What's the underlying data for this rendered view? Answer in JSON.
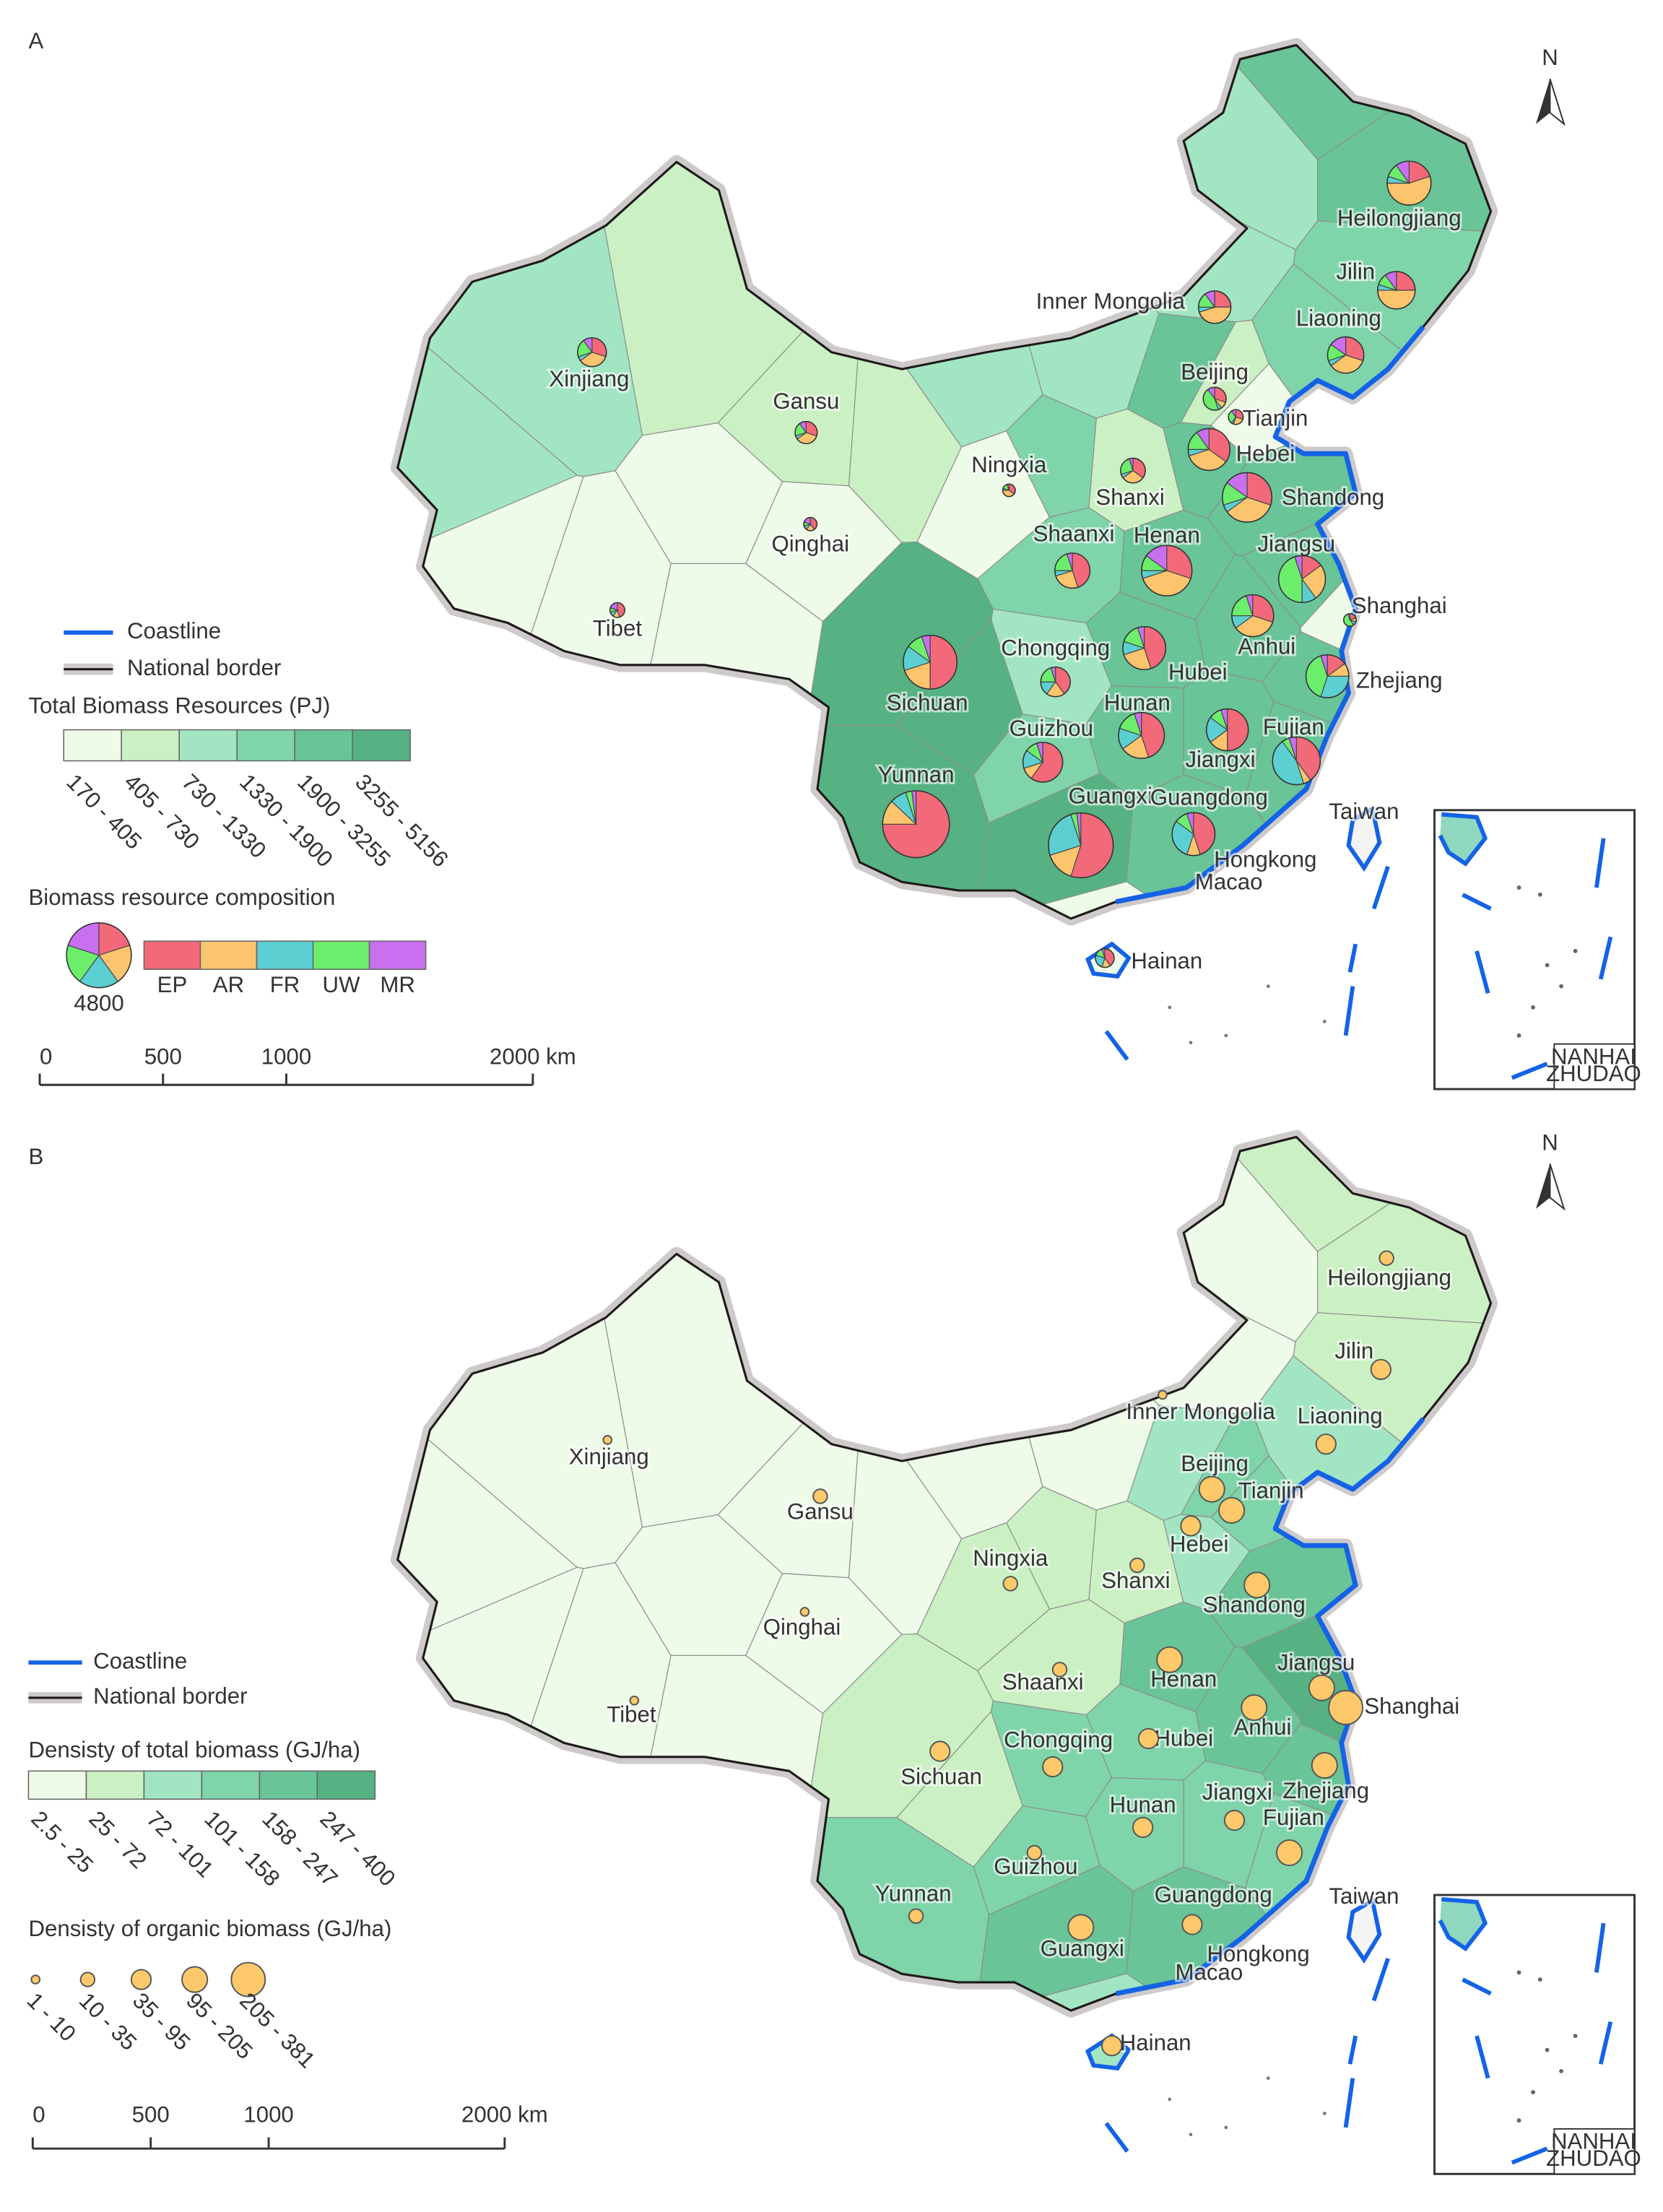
{
  "panels": [
    {
      "label": "A",
      "north": "N",
      "legend": {
        "coastline": "Coastline",
        "border": "National border",
        "title": "Total Biomass Resources (PJ)",
        "breaks": [
          170,
          405,
          730,
          1330,
          1900,
          3255,
          5156
        ],
        "bin_labels": [
          "170 - 405",
          "405 - 730",
          "730 - 1330",
          "1330 - 1900",
          "1900 - 3255",
          "3255 - 5156"
        ],
        "colors": [
          "#eefbe9",
          "#cbf0c4",
          "#a2e5c2",
          "#7fd4aa",
          "#69c497",
          "#56b283"
        ]
      },
      "composition_legend": {
        "title": "Biomass resource composition",
        "reference_value": 4800,
        "components": [
          "EP",
          "AR",
          "FR",
          "UW",
          "MR"
        ],
        "colors": [
          "#f2697a",
          "#fdc46e",
          "#5ccfd2",
          "#6cee6c",
          "#c870f0"
        ]
      },
      "scale": {
        "ticks": [
          0,
          500,
          1000,
          {
            "value": 2000,
            "label": "2000 km"
          }
        ]
      },
      "inset": [
        "NANHAI",
        "ZHUDAO"
      ],
      "provinces": [
        {
          "name": "Xinjiang",
          "total": 950,
          "composition": [
            30,
            35,
            5,
            20,
            10
          ]
        },
        {
          "name": "Tibet",
          "total": 250,
          "composition": [
            45,
            15,
            10,
            10,
            20
          ]
        },
        {
          "name": "Qinghai",
          "total": 200,
          "composition": [
            40,
            20,
            10,
            10,
            20
          ]
        },
        {
          "name": "Gansu",
          "total": 560,
          "composition": [
            30,
            35,
            5,
            20,
            10
          ]
        },
        {
          "name": "Ningxia",
          "total": 180,
          "composition": [
            35,
            40,
            5,
            15,
            5
          ]
        },
        {
          "name": "Inner Mongolia",
          "total": 1200,
          "composition": [
            25,
            45,
            5,
            15,
            10
          ]
        },
        {
          "name": "Heilongjiang",
          "total": 2200,
          "composition": [
            20,
            55,
            5,
            10,
            10
          ]
        },
        {
          "name": "Jilin",
          "total": 1600,
          "composition": [
            25,
            50,
            5,
            10,
            10
          ]
        },
        {
          "name": "Liaoning",
          "total": 1500,
          "composition": [
            30,
            35,
            5,
            15,
            15
          ]
        },
        {
          "name": "Beijing",
          "total": 600,
          "composition": [
            30,
            10,
            5,
            45,
            10
          ]
        },
        {
          "name": "Tianjin",
          "total": 250,
          "composition": [
            30,
            25,
            5,
            30,
            10
          ]
        },
        {
          "name": "Hebei",
          "total": 2000,
          "composition": [
            35,
            35,
            5,
            15,
            10
          ]
        },
        {
          "name": "Shanxi",
          "total": 700,
          "composition": [
            35,
            30,
            5,
            25,
            5
          ]
        },
        {
          "name": "Shandong",
          "total": 2800,
          "composition": [
            30,
            35,
            5,
            15,
            15
          ]
        },
        {
          "name": "Shaanxi",
          "total": 1400,
          "composition": [
            45,
            25,
            5,
            20,
            5
          ]
        },
        {
          "name": "Henan",
          "total": 2900,
          "composition": [
            30,
            40,
            5,
            10,
            15
          ]
        },
        {
          "name": "Jiangsu",
          "total": 2500,
          "composition": [
            15,
            25,
            10,
            45,
            5
          ]
        },
        {
          "name": "Shanghai",
          "total": 180,
          "composition": [
            20,
            10,
            10,
            55,
            5
          ]
        },
        {
          "name": "Anhui",
          "total": 2000,
          "composition": [
            30,
            35,
            10,
            20,
            5
          ]
        },
        {
          "name": "Hubei",
          "total": 2100,
          "composition": [
            45,
            25,
            10,
            15,
            5
          ]
        },
        {
          "name": "Chongqing",
          "total": 1000,
          "composition": [
            40,
            20,
            15,
            20,
            5
          ]
        },
        {
          "name": "Sichuan",
          "total": 3300,
          "composition": [
            50,
            20,
            15,
            10,
            5
          ]
        },
        {
          "name": "Zhejiang",
          "total": 2100,
          "composition": [
            15,
            10,
            30,
            40,
            5
          ]
        },
        {
          "name": "Hunan",
          "total": 2400,
          "composition": [
            45,
            20,
            15,
            15,
            5
          ]
        },
        {
          "name": "Guizhou",
          "total": 1800,
          "composition": [
            60,
            10,
            15,
            10,
            5
          ]
        },
        {
          "name": "Jiangxi",
          "total": 2000,
          "composition": [
            50,
            15,
            20,
            10,
            5
          ]
        },
        {
          "name": "Fujian",
          "total": 2600,
          "composition": [
            40,
            5,
            45,
            5,
            5
          ]
        },
        {
          "name": "Yunnan",
          "total": 5100,
          "composition": [
            75,
            12,
            8,
            3,
            2
          ]
        },
        {
          "name": "Guangxi",
          "total": 4800,
          "composition": [
            55,
            15,
            25,
            3,
            2
          ]
        },
        {
          "name": "Guangdong",
          "total": 2100,
          "composition": [
            45,
            10,
            30,
            10,
            5
          ]
        },
        {
          "name": "Hongkong"
        },
        {
          "name": "Macao"
        },
        {
          "name": "Taiwan"
        },
        {
          "name": "Hainan",
          "total": 400,
          "composition": [
            40,
            15,
            25,
            15,
            5
          ]
        }
      ]
    },
    {
      "label": "B",
      "north": "N",
      "legend": {
        "coastline": "Coastline",
        "border": "National border",
        "title": "Densisty of total biomass (GJ/ha)",
        "breaks": [
          2.5,
          25,
          72,
          101,
          158,
          247,
          400
        ],
        "bin_labels": [
          "2.5 - 25",
          "25 - 72",
          "72 - 101",
          "101 - 158",
          "158 - 247",
          "247 - 400"
        ],
        "colors": [
          "#eefbe9",
          "#cbf0c4",
          "#a2e5c2",
          "#7fd4aa",
          "#69c497",
          "#56b283"
        ]
      },
      "bubble_legend": {
        "title": "Densisty of organic biomass (GJ/ha)",
        "color": "#fdc96a",
        "breaks": [
          1,
          10,
          35,
          95,
          205,
          381
        ],
        "bin_labels": [
          "1 - 10",
          "10 - 35",
          "35 - 95",
          "95 - 205",
          "205 - 381"
        ]
      },
      "scale": {
        "ticks": [
          0,
          500,
          1000,
          {
            "value": 2000,
            "label": "2000 km"
          }
        ]
      },
      "inset": [
        "NANHAI",
        "ZHUDAO"
      ],
      "provinces": [
        {
          "name": "Xinjiang",
          "total_density": 10,
          "organic_density": 5
        },
        {
          "name": "Tibet",
          "total_density": 5,
          "organic_density": 5
        },
        {
          "name": "Qinghai",
          "total_density": 8,
          "organic_density": 5
        },
        {
          "name": "Gansu",
          "total_density": 20,
          "organic_density": 20
        },
        {
          "name": "Ningxia",
          "total_density": 40,
          "organic_density": 20
        },
        {
          "name": "Inner Mongolia",
          "total_density": 15,
          "organic_density": 5
        },
        {
          "name": "Heilongjiang",
          "total_density": 40,
          "organic_density": 20
        },
        {
          "name": "Jilin",
          "total_density": 45,
          "organic_density": 50
        },
        {
          "name": "Liaoning",
          "total_density": 80,
          "organic_density": 50
        },
        {
          "name": "Beijing",
          "total_density": 110,
          "organic_density": 120
        },
        {
          "name": "Tianjin",
          "total_density": 130,
          "organic_density": 150
        },
        {
          "name": "Hebei",
          "total_density": 90,
          "organic_density": 50
        },
        {
          "name": "Shanxi",
          "total_density": 40,
          "organic_density": 20
        },
        {
          "name": "Shandong",
          "total_density": 170,
          "organic_density": 150
        },
        {
          "name": "Shaanxi",
          "total_density": 50,
          "organic_density": 20
        },
        {
          "name": "Henan",
          "total_density": 200,
          "organic_density": 150
        },
        {
          "name": "Jiangsu",
          "total_density": 260,
          "organic_density": 150
        },
        {
          "name": "Shanghai",
          "total_density": 280,
          "organic_density": 300
        },
        {
          "name": "Anhui",
          "total_density": 170,
          "organic_density": 120
        },
        {
          "name": "Hubei",
          "total_density": 150,
          "organic_density": 40
        },
        {
          "name": "Chongqing",
          "total_density": 130,
          "organic_density": 50
        },
        {
          "name": "Sichuan",
          "total_density": 50,
          "organic_density": 50
        },
        {
          "name": "Zhejiang",
          "total_density": 180,
          "organic_density": 120
        },
        {
          "name": "Hunan",
          "total_density": 120,
          "organic_density": 60
        },
        {
          "name": "Guizhou",
          "total_density": 110,
          "organic_density": 25
        },
        {
          "name": "Jiangxi",
          "total_density": 140,
          "organic_density": 40
        },
        {
          "name": "Fujian",
          "total_density": 150,
          "organic_density": 150
        },
        {
          "name": "Yunnan",
          "total_density": 110,
          "organic_density": 20
        },
        {
          "name": "Guangxi",
          "total_density": 180,
          "organic_density": 120
        },
        {
          "name": "Guangdong",
          "total_density": 160,
          "organic_density": 60
        },
        {
          "name": "Hongkong"
        },
        {
          "name": "Macao"
        },
        {
          "name": "Taiwan"
        },
        {
          "name": "Hainan",
          "total_density": 90,
          "organic_density": 60
        }
      ]
    }
  ]
}
